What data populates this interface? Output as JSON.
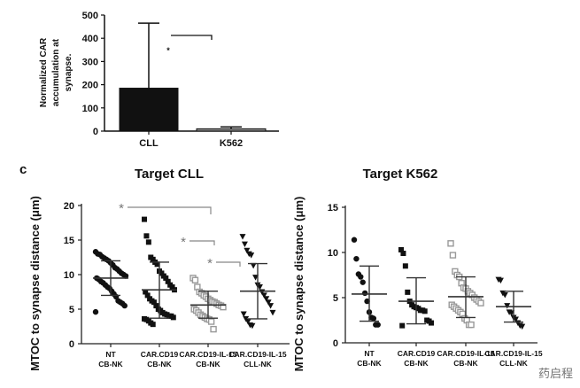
{
  "panel_label": "c",
  "watermark": "药启程",
  "chart_data": [
    {
      "type": "bar",
      "title": "",
      "ylabel_lines": [
        "Normalized CAR",
        "accumulation at",
        "synapse."
      ],
      "xlabel": "",
      "categories": [
        "CLL",
        "K562"
      ],
      "values": [
        185,
        10
      ],
      "error_upper": [
        465,
        18
      ],
      "bar_colors": [
        "#111111",
        "#888888"
      ],
      "ylim": [
        0,
        500
      ],
      "yticks": [
        0,
        100,
        200,
        300,
        400,
        500
      ],
      "annotations": [
        {
          "text": "*",
          "between": [
            "CLL",
            "K562"
          ]
        }
      ]
    },
    {
      "type": "scatter",
      "title": "Target CLL",
      "ylabel": "MTOC to synapse distance (μm)",
      "ylim": [
        0,
        20
      ],
      "yticks": [
        0,
        5,
        10,
        15,
        20
      ],
      "categories": [
        [
          "NT",
          "CB-NK"
        ],
        [
          "CAR.CD19",
          "CB-NK"
        ],
        [
          "CAR.CD19-IL-15",
          "CB-NK"
        ],
        [
          "CAR.CD19-IL-15",
          "CLL-NK"
        ]
      ],
      "series": [
        {
          "name": "NT CB-NK",
          "marker": "circle",
          "color": "#111111",
          "mean": 9.5,
          "sd": [
            7.0,
            12.0
          ],
          "values": [
            13.3,
            13.0,
            12.9,
            12.6,
            12.4,
            12.2,
            12.0,
            11.7,
            11.4,
            11.0,
            10.8,
            10.5,
            10.2,
            10.0,
            9.8,
            9.5,
            9.3,
            9.0,
            8.8,
            8.5,
            8.2,
            8.0,
            7.6,
            7.2,
            6.8,
            6.2,
            6.0,
            5.8,
            5.5,
            4.6
          ]
        },
        {
          "name": "CAR.CD19 CB-NK",
          "marker": "square",
          "color": "#111111",
          "mean": 7.8,
          "sd": [
            3.7,
            11.8
          ],
          "values": [
            18.0,
            15.6,
            14.7,
            12.5,
            12.2,
            11.8,
            11.5,
            10.5,
            10.2,
            9.8,
            9.5,
            9.0,
            8.5,
            8.2,
            7.8,
            7.5,
            7.0,
            6.5,
            6.2,
            6.0,
            5.5,
            5.0,
            4.8,
            4.5,
            4.3,
            4.2,
            4.0,
            4.0,
            3.8,
            3.6,
            3.5,
            3.3,
            3.0,
            2.8
          ]
        },
        {
          "name": "CAR.CD19-IL-15 CB-NK",
          "marker": "open-square",
          "color": "#999999",
          "mean": 5.6,
          "sd": [
            3.7,
            7.6
          ],
          "values": [
            9.5,
            9.2,
            8.2,
            7.5,
            7.3,
            7.0,
            6.8,
            6.5,
            6.3,
            6.1,
            6.0,
            5.8,
            5.6,
            5.5,
            5.3,
            5.0,
            4.8,
            4.5,
            4.2,
            4.0,
            3.8,
            3.6,
            3.5,
            3.2,
            2.1
          ]
        },
        {
          "name": "CAR.CD19-IL-15 CLL-NK",
          "marker": "triangle-down",
          "color": "#111111",
          "mean": 7.6,
          "sd": [
            3.6,
            11.6
          ],
          "values": [
            15.5,
            14.4,
            13.5,
            13.0,
            12.8,
            11.3,
            9.6,
            8.5,
            8.2,
            7.5,
            7.0,
            6.5,
            6.0,
            5.5,
            4.5,
            4.3,
            3.6,
            3.2,
            2.7,
            2.6
          ]
        }
      ],
      "annotations": [
        {
          "text": "*",
          "from": 0,
          "to": 2
        },
        {
          "text": "*",
          "from": 1,
          "to": 2
        },
        {
          "text": "*",
          "from": 2,
          "to": 3
        }
      ]
    },
    {
      "type": "scatter",
      "title": "Target K562",
      "ylabel": "MTOC to synapse distance (μm)",
      "ylim": [
        0,
        15
      ],
      "yticks": [
        0,
        5,
        10,
        15
      ],
      "categories": [
        [
          "NT",
          "CB-NK"
        ],
        [
          "CAR.CD19",
          "CB-NK"
        ],
        [
          "CAR.CD19-IL-15",
          "CB-NK"
        ],
        [
          "CAR.CD19-IL-15",
          "CLL-NK"
        ]
      ],
      "series": [
        {
          "name": "NT CB-NK",
          "marker": "circle",
          "color": "#111111",
          "mean": 5.4,
          "sd": [
            2.4,
            8.5
          ],
          "values": [
            11.4,
            9.3,
            7.6,
            7.3,
            6.7,
            5.5,
            4.6,
            3.4,
            2.8,
            2.7,
            2.0,
            2.0
          ]
        },
        {
          "name": "CAR.CD19 CB-NK",
          "marker": "square",
          "color": "#111111",
          "mean": 4.6,
          "sd": [
            2.1,
            7.2
          ],
          "values": [
            10.3,
            9.9,
            8.5,
            5.6,
            4.6,
            4.2,
            4.0,
            3.9,
            3.8,
            3.6,
            3.6,
            3.5,
            2.5,
            2.4,
            2.2,
            1.9
          ]
        },
        {
          "name": "CAR.CD19-IL-15 CB-NK",
          "marker": "open-square",
          "color": "#999999",
          "mean": 5.1,
          "sd": [
            2.8,
            7.3
          ],
          "values": [
            11.0,
            9.7,
            7.9,
            7.5,
            7.3,
            6.6,
            6.1,
            6.0,
            5.7,
            5.5,
            5.3,
            5.0,
            4.8,
            4.6,
            4.4,
            4.2,
            4.0,
            3.8,
            3.6,
            3.4,
            3.2,
            2.7,
            2.5,
            2.0,
            2.0
          ]
        },
        {
          "name": "CAR.CD19-IL-15 CLL-NK",
          "marker": "triangle-down",
          "color": "#111111",
          "mean": 4.0,
          "sd": [
            2.3,
            5.7
          ],
          "values": [
            7.0,
            6.9,
            5.5,
            5.3,
            4.1,
            3.4,
            3.3,
            2.8,
            2.6,
            2.2,
            1.9,
            1.8
          ]
        }
      ],
      "annotations": []
    }
  ]
}
